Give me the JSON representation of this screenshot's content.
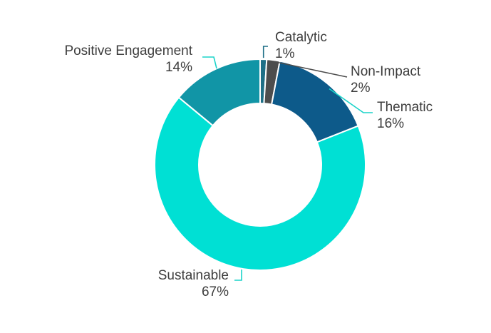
{
  "chart_data": {
    "type": "pie",
    "subtype": "donut",
    "title": "",
    "series": [
      {
        "name": "Catalytic",
        "value": 1,
        "label": "1%",
        "color": "#1e6f86"
      },
      {
        "name": "Non-Impact",
        "value": 2,
        "label": "2%",
        "color": "#4d4d4d"
      },
      {
        "name": "Thematic",
        "value": 16,
        "label": "16%",
        "color": "#0d5a8a"
      },
      {
        "name": "Sustainable",
        "value": 67,
        "label": "67%",
        "color": "#00e0d4"
      },
      {
        "name": "Positive Engagement",
        "value": 14,
        "label": "14%",
        "color": "#1195a6"
      }
    ],
    "start_angle_deg": 0,
    "direction": "clockwise",
    "legend": "none",
    "leader_line_color": "#1ad3c9"
  }
}
